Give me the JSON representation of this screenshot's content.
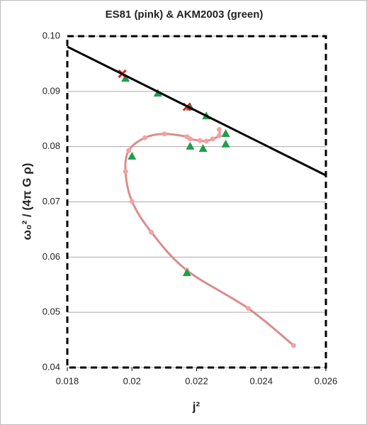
{
  "chart_data": {
    "type": "scatter",
    "title": "ES81 (pink) & AKM2003 (green)",
    "x_label": "j²",
    "y_label": "ω₀² / (4π G ρ)",
    "xlim": [
      0.018,
      0.026
    ],
    "ylim": [
      0.04,
      0.1
    ],
    "xticks": [
      0.018,
      0.02,
      0.022,
      0.024,
      0.026
    ],
    "yticks": [
      0.04,
      0.05,
      0.06,
      0.07,
      0.08,
      0.09,
      {
        "value": 0.1,
        "label": "0.10"
      }
    ],
    "grid": true,
    "series": [
      {
        "name": "ES81",
        "color": "#d98d8d",
        "marker_color": "#f2a3a3",
        "marker": "circle",
        "line": true,
        "x": [
          0.025,
          0.0236,
          0.0217,
          0.0206,
          0.02,
          0.0198,
          0.0199,
          0.0204,
          0.021,
          0.0217,
          0.0218,
          0.0221,
          0.0223,
          0.0225,
          0.0227,
          0.0227
        ],
        "values": [
          0.044,
          0.0507,
          0.0576,
          0.0645,
          0.0701,
          0.0755,
          0.0793,
          0.0816,
          0.0823,
          0.0818,
          0.0814,
          0.0811,
          0.081,
          0.0814,
          0.082,
          0.0831
        ]
      },
      {
        "name": "AKM2003",
        "color": "#1f9e48",
        "marker": "triangle",
        "line": false,
        "x": [
          0.0198,
          0.0208,
          0.0218,
          0.0223,
          0.0229,
          0.0229,
          0.0218,
          0.0222,
          0.02,
          0.0217
        ],
        "values": [
          0.0924,
          0.0897,
          0.0872,
          0.0856,
          0.0824,
          0.0805,
          0.0801,
          0.0797,
          0.0783,
          0.0572
        ]
      },
      {
        "color": "#e0201c",
        "marker": "x",
        "line": false,
        "x": [
          0.0197,
          0.0217
        ],
        "values": [
          0.0932,
          0.0872
        ]
      },
      {
        "color": "#000000",
        "marker": "none",
        "line": true,
        "x": [
          0.018,
          0.026
        ],
        "values": [
          0.0981,
          0.0748
        ]
      }
    ]
  }
}
